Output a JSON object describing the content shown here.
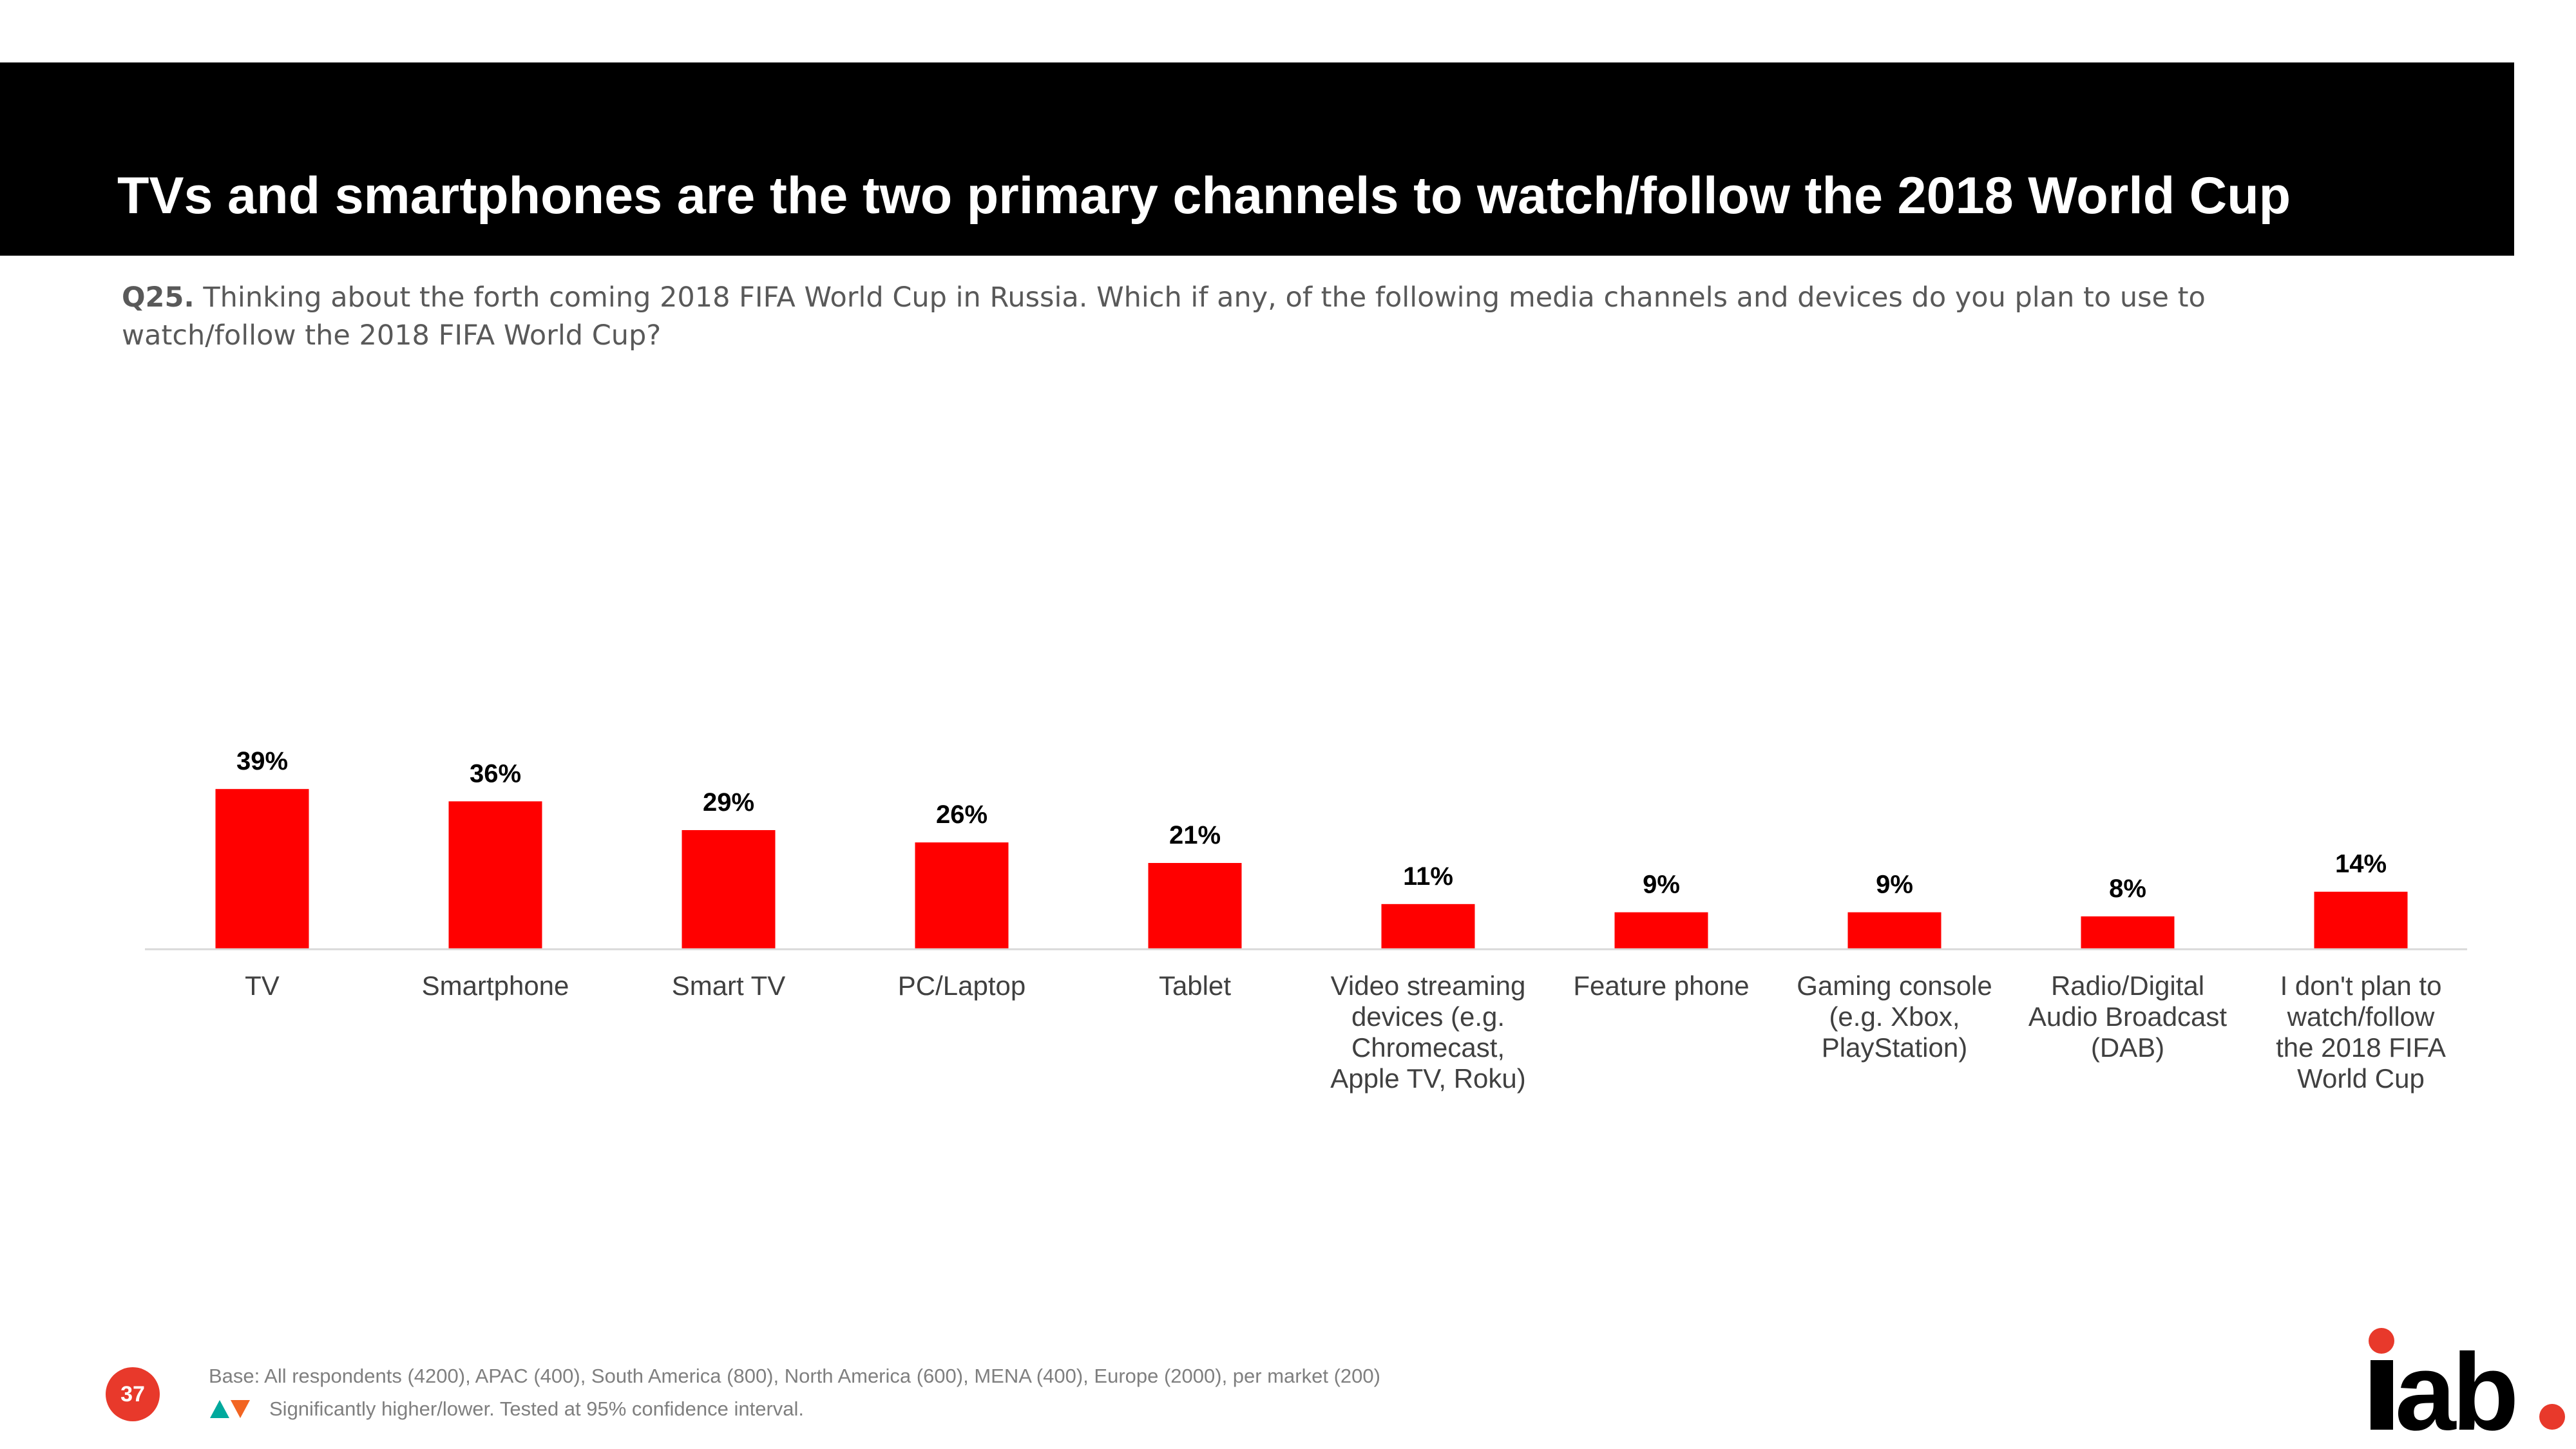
{
  "slide": {
    "title": "TVs and smartphones are the two primary channels to watch/follow the 2018 World Cup",
    "question_label": "Q25.",
    "question_text": "Thinking about the forth coming 2018 FIFA World Cup in Russia. Which if any, of the following media channels and devices do you plan to use to watch/follow the 2018 FIFA World Cup?",
    "base_note": "Base: All respondents (4200), APAC (400), South America (800), North America (600), MENA (400), Europe (2000), per market (200)",
    "significance_note": "Significantly higher/lower. Tested at 95% confidence interval.",
    "page_number": "37",
    "logo_text": "iab."
  },
  "colors": {
    "bar": "#ff0000",
    "title_bar": "#000000",
    "up_arrow": "#00a99d",
    "down_arrow": "#f26522",
    "page_badge": "#e8392b"
  },
  "chart_data": {
    "type": "bar",
    "categories": [
      "TV",
      "Smartphone",
      "Smart TV",
      "PC/Laptop",
      "Tablet",
      "Video streaming devices (e.g. Chromecast, Apple TV, Roku)",
      "Feature phone",
      "Gaming console (e.g. Xbox, PlayStation)",
      "Radio/Digital Audio Broadcast (DAB)",
      "I don't plan to watch/follow the 2018 FIFA World Cup"
    ],
    "values": [
      39,
      36,
      29,
      26,
      21,
      11,
      9,
      9,
      8,
      14
    ],
    "value_labels": [
      "39%",
      "36%",
      "29%",
      "26%",
      "21%",
      "11%",
      "9%",
      "9%",
      "8%",
      "14%"
    ],
    "unit": "%",
    "grid": false,
    "legend": "none"
  }
}
